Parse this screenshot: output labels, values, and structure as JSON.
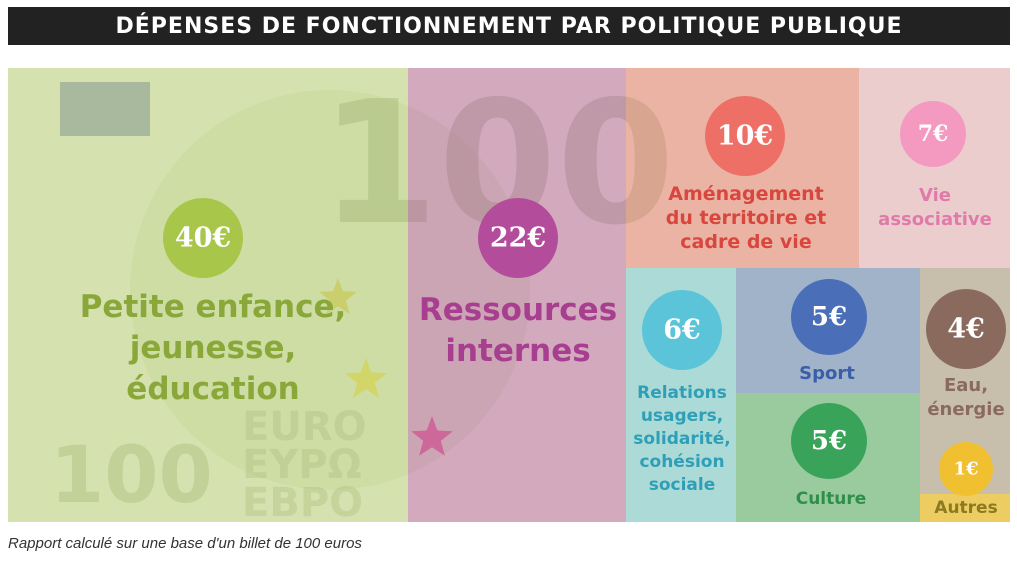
{
  "header": {
    "title": "DÉPENSES DE  FONCTIONNEMENT PAR POLITIQUE PUBLIQUE"
  },
  "footer": {
    "note": "Rapport calculé sur une base d'un billet de 100 euros"
  },
  "bill": {
    "big_number": "100",
    "small_number": "100",
    "words": [
      "EURO",
      "EYPΩ",
      "EBPO"
    ]
  },
  "chart_data": {
    "type": "treemap",
    "title": "DÉPENSES DE  FONCTIONNEMENT PAR POLITIQUE PUBLIQUE",
    "unit": "€",
    "total": 100,
    "items": [
      {
        "id": "petite-enfance",
        "value": 40,
        "badge": "40€",
        "label": [
          "Petite enfance,",
          "jeunesse,",
          "éducation"
        ],
        "color": "#a8c74a",
        "text_color": "#8aa83a"
      },
      {
        "id": "ressources-internes",
        "value": 22,
        "badge": "22€",
        "label": [
          "Ressources",
          "internes"
        ],
        "color": "#b44c9c",
        "text_color": "#a83e90"
      },
      {
        "id": "amenagement",
        "value": 10,
        "badge": "10€",
        "label": [
          "Aménagement",
          "du territoire et",
          "cadre de vie"
        ],
        "color": "#ee6f66",
        "text_color": "#d8463e"
      },
      {
        "id": "vie-associative",
        "value": 7,
        "badge": "7€",
        "label": [
          "Vie",
          "associative"
        ],
        "color": "#f49ac1",
        "text_color": "#e07aaa"
      },
      {
        "id": "relations-usagers",
        "value": 6,
        "badge": "6€",
        "label": [
          "Relations",
          "usagers,",
          "solidarité,",
          "cohésion",
          "sociale"
        ],
        "color": "#5bc4d8",
        "text_color": "#2f9fb8"
      },
      {
        "id": "sport",
        "value": 5,
        "badge": "5€",
        "label": [
          "Sport"
        ],
        "color": "#4a6fb8",
        "text_color": "#3a5fa8"
      },
      {
        "id": "culture",
        "value": 5,
        "badge": "5€",
        "label": [
          "Culture"
        ],
        "color": "#3aa35a",
        "text_color": "#2f8f4a"
      },
      {
        "id": "eau-energie",
        "value": 4,
        "badge": "4€",
        "label": [
          "Eau,",
          "énergie"
        ],
        "color": "#8b6a5e",
        "text_color": "#8b6a5e"
      },
      {
        "id": "autres",
        "value": 1,
        "badge": "1€",
        "label": [
          "Autres"
        ],
        "color": "#f0c030",
        "text_color": "#8a7a20"
      }
    ]
  }
}
